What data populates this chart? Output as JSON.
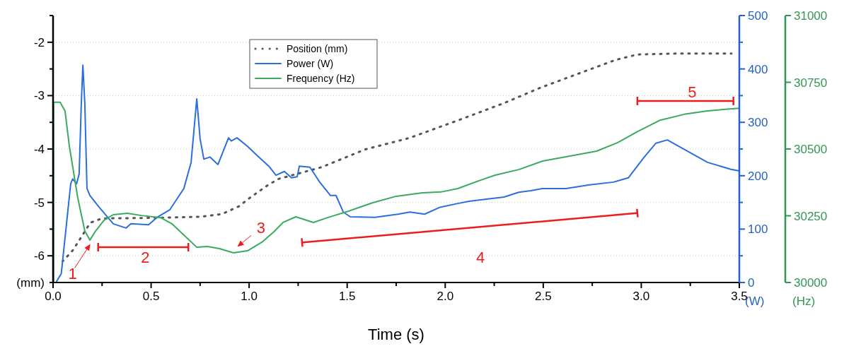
{
  "chart_data": {
    "type": "line",
    "xlabel": "Time (s)",
    "ylabel": "(mm)",
    "y2label": "(W)",
    "y3label": "(Hz)",
    "xlim": [
      0,
      3.5
    ],
    "xticks": [
      {
        "value": 0,
        "label": "0.0"
      },
      {
        "value": 0.25,
        "label": null
      },
      {
        "value": 0.5,
        "label": "0.5"
      },
      {
        "value": 0.75,
        "label": null
      },
      {
        "value": 1,
        "label": "1.0"
      },
      {
        "value": 1.25,
        "label": null
      },
      {
        "value": 1.5,
        "label": "1.5"
      },
      {
        "value": 1.75,
        "label": null
      },
      {
        "value": 2,
        "label": "2.0"
      },
      {
        "value": 2.25,
        "label": null
      },
      {
        "value": 2.5,
        "label": "2.5"
      },
      {
        "value": 2.75,
        "label": null
      },
      {
        "value": 3,
        "label": "3.0"
      },
      {
        "value": 3.25,
        "label": null
      },
      {
        "value": 3.5,
        "label": "3.5"
      }
    ],
    "ylim": [
      -6.5,
      -1.5
    ],
    "yticks": [
      {
        "value": -6.5,
        "label": null
      },
      -6,
      {
        "value": -5.5,
        "label": null
      },
      -5,
      {
        "value": -4.5,
        "label": null
      },
      -4,
      {
        "value": -3.5,
        "label": null
      },
      -3,
      {
        "value": -2.5,
        "label": null
      },
      -2,
      {
        "value": -1.5,
        "label": null
      }
    ],
    "y2lim": [
      0,
      500
    ],
    "y2ticks": [
      0,
      {
        "value": 50,
        "label": null
      },
      100,
      {
        "value": 150,
        "label": null
      },
      200,
      {
        "value": 250,
        "label": null
      },
      300,
      {
        "value": 350,
        "label": null
      },
      400,
      {
        "value": 450,
        "label": null
      },
      500
    ],
    "y3lim": [
      30000,
      31000
    ],
    "y3ticks": [
      30000,
      30250,
      30500,
      30750,
      31000
    ],
    "grid": "y",
    "legend": "top",
    "series": [
      {
        "name": "Position (mm)",
        "color": "#555555",
        "line_style": "dotted",
        "axis": "y",
        "x": [
          0.05,
          0.1,
          0.13,
          0.19,
          0.25,
          0.5,
          0.75,
          0.86,
          0.95,
          0.99,
          1.04,
          1.09,
          1.15,
          1.37,
          1.59,
          1.82,
          2.09,
          2.3,
          2.48,
          2.7,
          2.87,
          2.98,
          3.2,
          3.46
        ],
        "values": [
          -6.1,
          -5.9,
          -5.73,
          -5.38,
          -5.3,
          -5.29,
          -5.27,
          -5.22,
          -5.07,
          -4.95,
          -4.82,
          -4.69,
          -4.56,
          -4.34,
          -4.01,
          -3.79,
          -3.43,
          -3.14,
          -2.86,
          -2.56,
          -2.33,
          -2.23,
          -2.21,
          -2.21
        ]
      },
      {
        "name": "Power (W)",
        "color": "#2a6fdb",
        "line_style": "solid",
        "axis": "y2",
        "x": [
          0.018,
          0.042,
          0.09,
          0.1,
          0.12,
          0.133,
          0.144,
          0.152,
          0.162,
          0.173,
          0.188,
          0.235,
          0.307,
          0.372,
          0.397,
          0.487,
          0.534,
          0.595,
          0.667,
          0.704,
          0.733,
          0.75,
          0.769,
          0.8,
          0.841,
          0.895,
          0.909,
          0.938,
          0.992,
          1.04,
          1.1,
          1.137,
          1.18,
          1.216,
          1.245,
          1.256,
          1.31,
          1.36,
          1.415,
          1.443,
          1.48,
          1.516,
          1.642,
          1.76,
          1.82,
          1.895,
          1.974,
          2.064,
          2.122,
          2.21,
          2.3,
          2.375,
          2.436,
          2.497,
          2.616,
          2.736,
          2.858,
          2.934,
          3.013,
          3.075,
          3.133,
          3.241,
          3.338,
          3.457,
          3.5
        ],
        "values": [
          2,
          17,
          185,
          194,
          185,
          203,
          335,
          407,
          335,
          176,
          163,
          141,
          110,
          102,
          110,
          108,
          123,
          136,
          176,
          225,
          344,
          269,
          231,
          235,
          221,
          271,
          265,
          271,
          255,
          238,
          218,
          201,
          208,
          196,
          198,
          218,
          216,
          188,
          163,
          163,
          132,
          123,
          122,
          128,
          132,
          128,
          141,
          148,
          152,
          156,
          160,
          169,
          172,
          176,
          176,
          183,
          188,
          196,
          234,
          261,
          267,
          245,
          225,
          212,
          209
        ]
      },
      {
        "name": "Frequency (Hz)",
        "color": "#3aaa5f",
        "line_style": "solid",
        "axis": "y3",
        "x": [
          0.003,
          0.003,
          0.036,
          0.061,
          0.083,
          0.126,
          0.162,
          0.188,
          0.217,
          0.26,
          0.307,
          0.379,
          0.451,
          0.549,
          0.606,
          0.668,
          0.733,
          0.787,
          0.848,
          0.92,
          0.992,
          1.065,
          1.126,
          1.173,
          1.238,
          1.328,
          1.4,
          1.498,
          1.631,
          1.75,
          1.884,
          1.978,
          2.064,
          2.183,
          2.255,
          2.375,
          2.497,
          2.616,
          2.772,
          2.88,
          2.977,
          3.096,
          3.219,
          3.338,
          3.5
        ],
        "values": [
          30000,
          30675,
          30675,
          30643,
          30511,
          30317,
          30193,
          30159,
          30193,
          30233,
          30254,
          30259,
          30251,
          30243,
          30220,
          30177,
          30132,
          30135,
          30127,
          30111,
          30119,
          30151,
          30190,
          30225,
          30246,
          30225,
          30243,
          30265,
          30299,
          30323,
          30336,
          30339,
          30352,
          30384,
          30402,
          30423,
          30455,
          30471,
          30492,
          30524,
          30564,
          30608,
          30630,
          30643,
          30653
        ]
      }
    ],
    "annotations": [
      "1",
      "2",
      "3",
      "4",
      "5"
    ]
  }
}
